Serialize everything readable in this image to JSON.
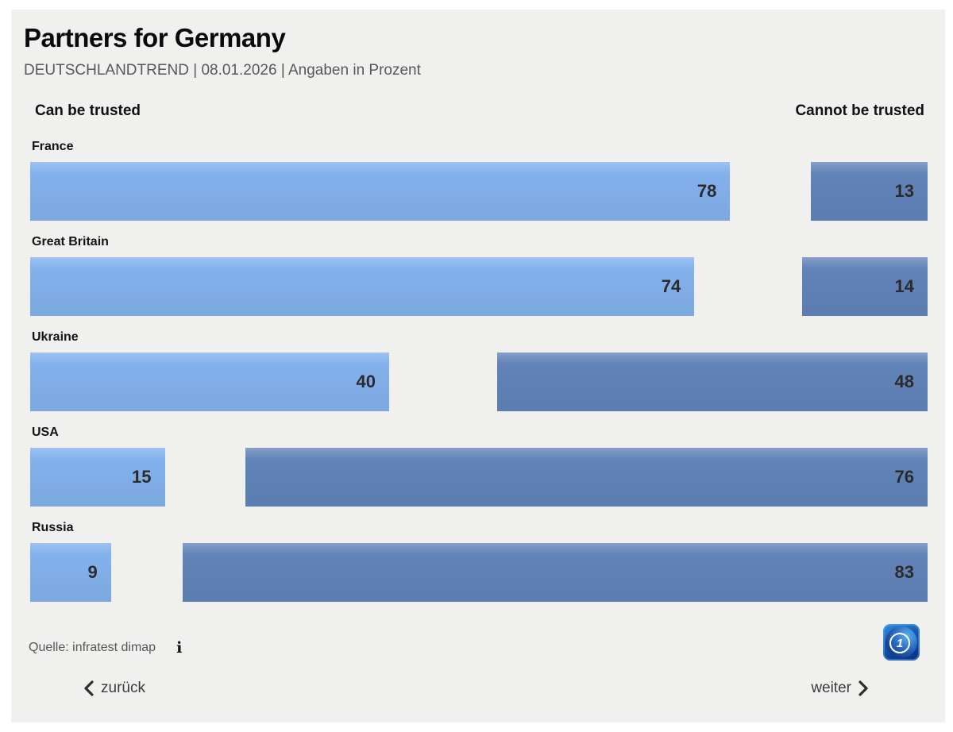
{
  "header": {
    "title": "Partners for Germany",
    "subtitle": "DEUTSCHLANDTREND | 08.01.2026 | Angaben in Prozent"
  },
  "columns": {
    "left": "Can be trusted",
    "right": "Cannot be trusted"
  },
  "chart_data": {
    "type": "bar",
    "orientation": "horizontal-paired",
    "unit": "percent",
    "value_range": [
      0,
      100
    ],
    "categories": [
      "France",
      "Great Britain",
      "Ukraine",
      "USA",
      "Russia"
    ],
    "series": [
      {
        "name": "Can be trusted",
        "color": "#83b1ec",
        "align": "left",
        "values": [
          78,
          74,
          40,
          15,
          9
        ]
      },
      {
        "name": "Cannot be trusted",
        "color": "#6183b8",
        "align": "right",
        "values": [
          13,
          14,
          48,
          76,
          83
        ]
      }
    ],
    "value_label_color": "#2b2b2b",
    "grid": false,
    "legend_position": "top-as-column-headers"
  },
  "footer": {
    "source": "Quelle: infratest dimap",
    "info_icon_glyph": "i",
    "logo_text": "1"
  },
  "nav": {
    "back": "zurück",
    "next": "weiter"
  },
  "colors": {
    "page_background": "#ffffff",
    "panel_background": "#f0f0ee",
    "trust_bar": "#83b1ec",
    "distrust_bar": "#6183b8",
    "logo_blue": "#1457ae"
  }
}
